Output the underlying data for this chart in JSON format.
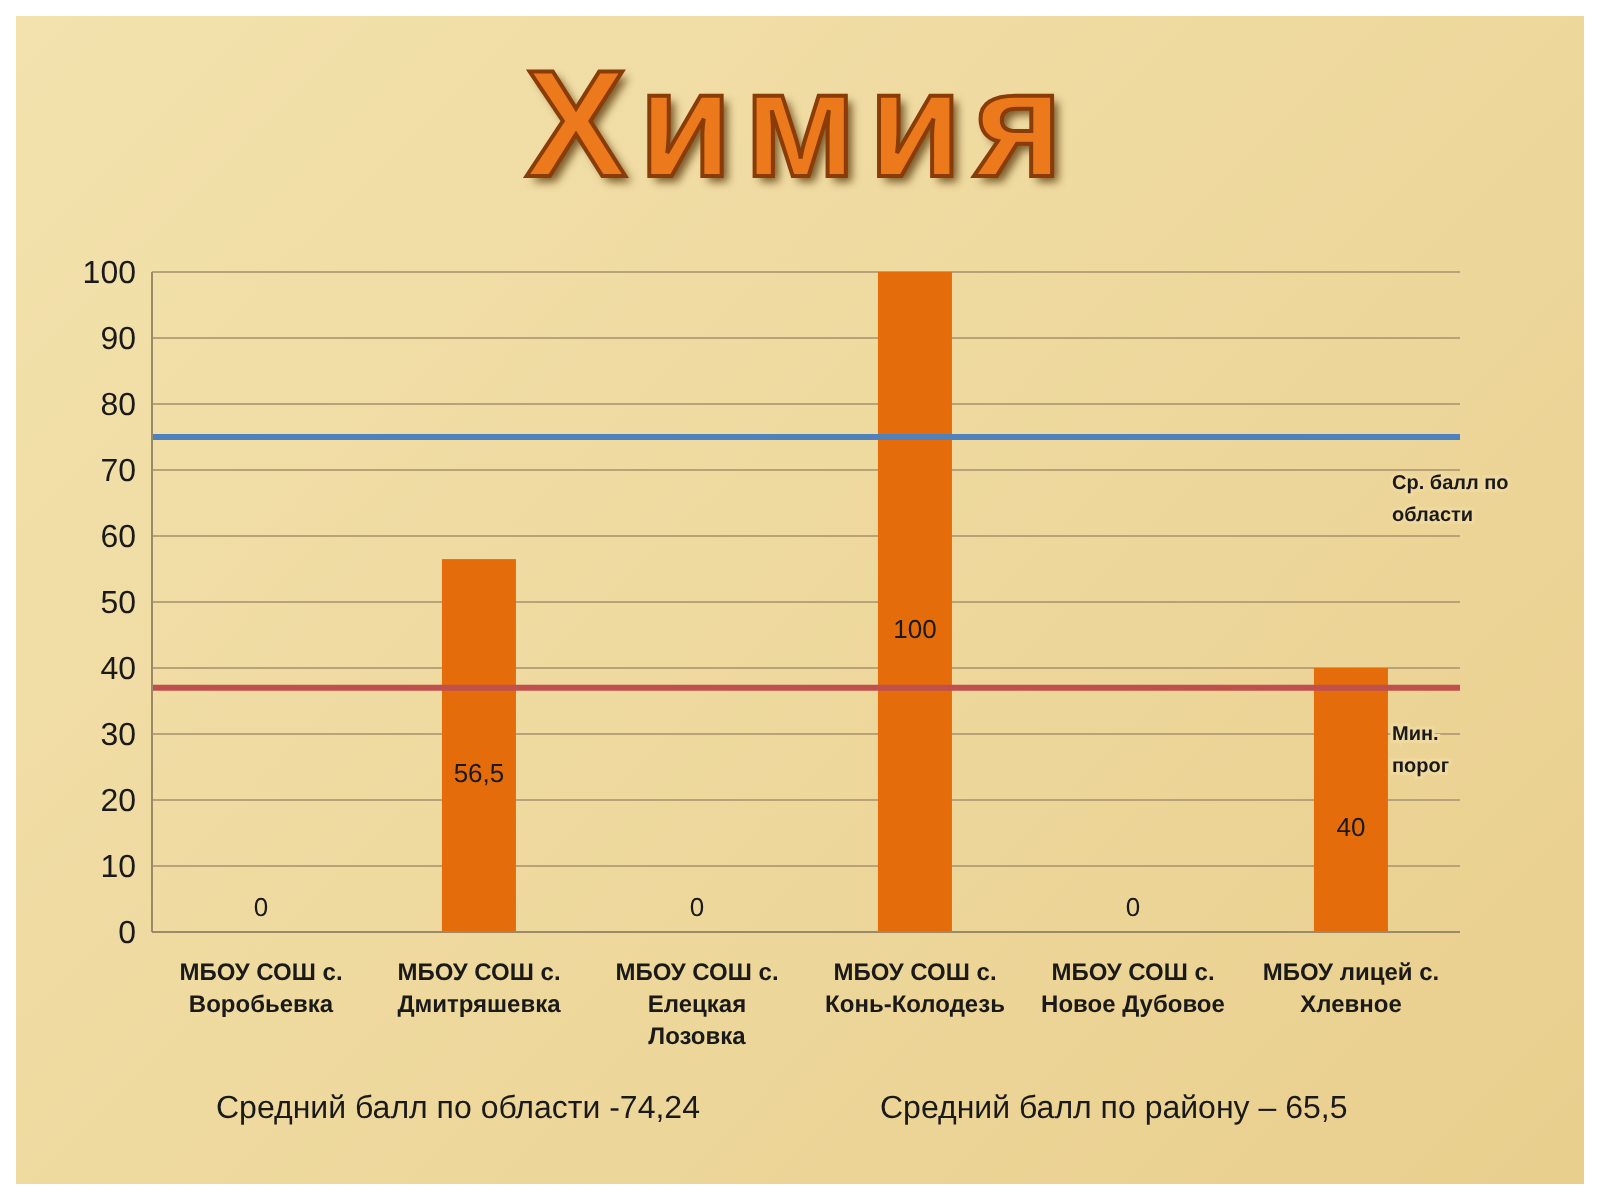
{
  "chart_data": {
    "type": "bar",
    "title": "Химия",
    "categories": [
      "МБОУ СОШ с. Воробьевка",
      "МБОУ СОШ с. Дмитряшевка",
      "МБОУ СОШ с. Елецкая Лозовка",
      "МБОУ СОШ с. Конь-Колодезь",
      "МБОУ СОШ с. Новое Дубовое",
      "МБОУ лицей с. Хлевное"
    ],
    "values": [
      0,
      56.5,
      0,
      100,
      0,
      40
    ],
    "value_labels": [
      "0",
      "56,5",
      "0",
      "100",
      "0",
      "40"
    ],
    "color": "#e46c0a",
    "ylim": [
      0,
      100
    ],
    "yticks": [
      0,
      10,
      20,
      30,
      40,
      50,
      60,
      70,
      80,
      90,
      100
    ],
    "grid": "y",
    "ref_lines": [
      {
        "axis": "y",
        "value": 75,
        "label": "Ср. балл по области",
        "color": "#4f81bd"
      },
      {
        "axis": "y",
        "value": 37,
        "label": "Мин. порог",
        "color": "#c0504d"
      }
    ],
    "annotations": [
      "Средний балл по области -74,24",
      "Средний балл по району – 65,5"
    ]
  }
}
